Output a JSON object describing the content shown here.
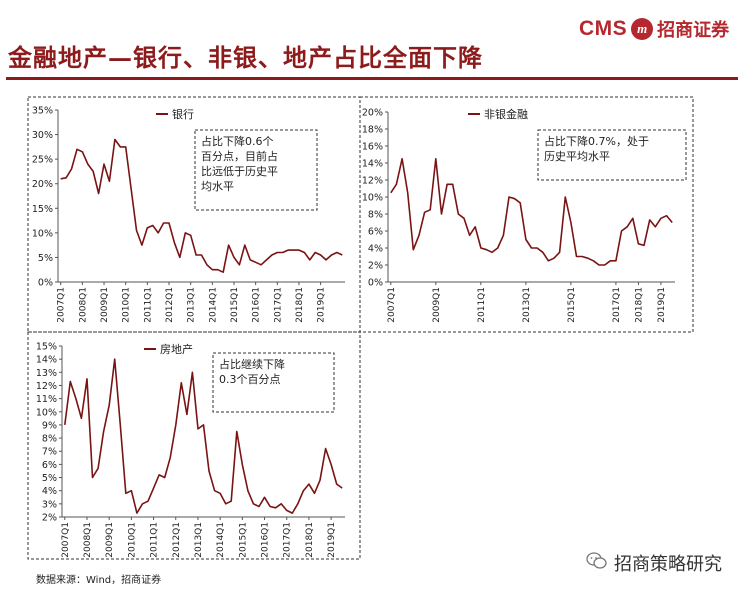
{
  "header": {
    "title": "金融地产—银行、非银、地产占比全面下降",
    "logo_cms": "CMS",
    "logo_badge": "m",
    "logo_cn": "招商证券"
  },
  "footer": {
    "source": "数据来源：Wind，招商证券",
    "wechat": "招商策略研究"
  },
  "chart_data": [
    {
      "type": "line",
      "legend": "银行",
      "annotation": [
        "占比下降0.6个",
        "百分点，目前占",
        "比远低于历史平",
        "均水平"
      ],
      "ylim": [
        0,
        35
      ],
      "yticks": [
        "0%",
        "5%",
        "10%",
        "15%",
        "20%",
        "25%",
        "30%",
        "35%"
      ],
      "xticks": [
        "2007Q1",
        "2008Q1",
        "2009Q1",
        "2010Q1",
        "2011Q1",
        "2012Q1",
        "2013Q1",
        "2014Q1",
        "2015Q1",
        "2016Q1",
        "2017Q1",
        "2018Q1",
        "2019Q1"
      ],
      "start": 2007,
      "color": "#7a1313",
      "values": [
        21.0,
        21.2,
        23.0,
        27.0,
        26.5,
        24.0,
        22.5,
        18.0,
        24.0,
        20.5,
        29.0,
        27.5,
        27.5,
        19.0,
        10.5,
        7.5,
        11.0,
        11.5,
        10.0,
        12.0,
        12.0,
        8.0,
        5.0,
        10.0,
        9.5,
        5.5,
        5.5,
        3.5,
        2.5,
        2.5,
        2.0,
        7.5,
        5.0,
        3.5,
        7.5,
        4.5,
        4.0,
        3.5,
        4.5,
        5.5,
        6.0,
        6.0,
        6.5,
        6.5,
        6.5,
        6.0,
        4.5,
        6.0,
        5.5,
        4.5,
        5.5,
        6.0,
        5.5
      ]
    },
    {
      "type": "line",
      "legend": "非银金融",
      "annotation": [
        "占比下降0.7%，处于",
        "历史平均水平"
      ],
      "ylim": [
        0,
        20
      ],
      "yticks": [
        "0%",
        "2%",
        "4%",
        "6%",
        "8%",
        "10%",
        "12%",
        "14%",
        "16%",
        "18%",
        "20%"
      ],
      "xticks": [
        "2007Q1",
        "2009Q1",
        "2011Q1",
        "2013Q1",
        "2015Q1",
        "2017Q1",
        "2018Q1",
        "2019Q1"
      ],
      "start": 2007,
      "color": "#7a1313",
      "values": [
        10.5,
        11.5,
        14.5,
        10.5,
        3.8,
        5.5,
        8.2,
        8.5,
        14.5,
        8.0,
        11.5,
        11.5,
        8.0,
        7.5,
        5.5,
        6.5,
        4.0,
        3.8,
        3.5,
        4.0,
        5.5,
        10.0,
        9.8,
        9.3,
        5.0,
        4.0,
        4.0,
        3.5,
        2.5,
        2.8,
        3.5,
        10.0,
        7.0,
        3.0,
        3.0,
        2.8,
        2.5,
        2.0,
        2.0,
        2.5,
        2.5,
        6.0,
        6.5,
        7.5,
        4.5,
        4.3,
        7.3,
        6.5,
        7.5,
        7.8,
        7.0
      ]
    },
    {
      "type": "line",
      "legend": "房地产",
      "annotation": [
        "占比继续下降",
        "0.3个百分点"
      ],
      "ylim": [
        2,
        15
      ],
      "yticks": [
        "2%",
        "3%",
        "4%",
        "5%",
        "6%",
        "7%",
        "8%",
        "9%",
        "10%",
        "11%",
        "12%",
        "13%",
        "14%",
        "15%"
      ],
      "xticks": [
        "2007Q1",
        "2008Q1",
        "2009Q1",
        "2010Q1",
        "2011Q1",
        "2012Q1",
        "2013Q1",
        "2014Q1",
        "2015Q1",
        "2016Q1",
        "2017Q1",
        "2018Q1",
        "2019Q1"
      ],
      "start": 2007,
      "color": "#7a1313",
      "values": [
        9.0,
        12.3,
        11.0,
        9.5,
        12.5,
        5.0,
        5.7,
        8.5,
        10.5,
        14.0,
        9.0,
        3.8,
        4.0,
        2.3,
        3.0,
        3.2,
        4.2,
        5.2,
        5.0,
        6.5,
        9.0,
        12.2,
        9.8,
        13.0,
        8.7,
        9.0,
        5.5,
        4.0,
        3.8,
        3.0,
        3.2,
        8.5,
        6.0,
        4.0,
        3.0,
        2.8,
        3.5,
        2.8,
        2.7,
        3.0,
        2.5,
        2.3,
        3.0,
        4.0,
        4.5,
        3.8,
        4.8,
        7.2,
        6.0,
        4.5,
        4.2
      ]
    }
  ]
}
